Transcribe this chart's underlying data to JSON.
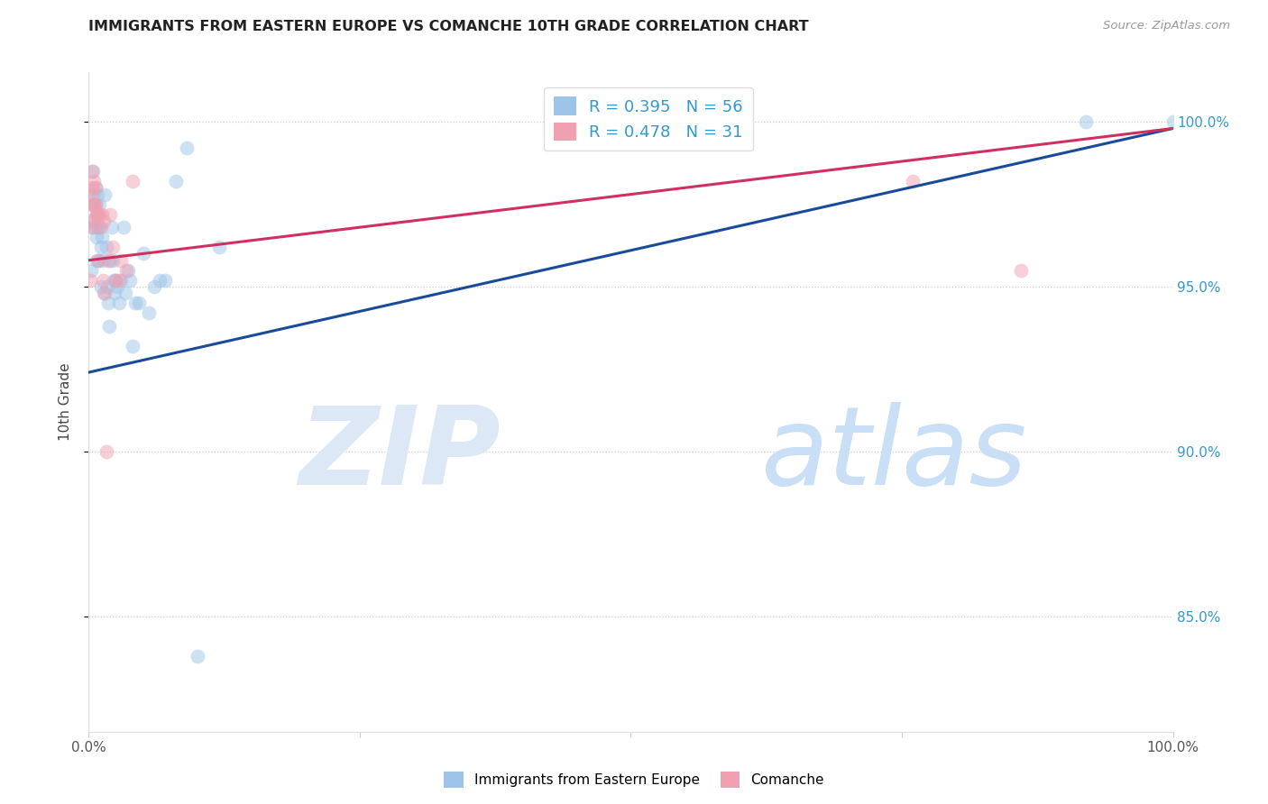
{
  "title": "IMMIGRANTS FROM EASTERN EUROPE VS COMANCHE 10TH GRADE CORRELATION CHART",
  "source": "Source: ZipAtlas.com",
  "ylabel": "10th Grade",
  "ylabel_right_labels": [
    "100.0%",
    "95.0%",
    "90.0%",
    "85.0%"
  ],
  "ylabel_right_values": [
    1.0,
    0.95,
    0.9,
    0.85
  ],
  "legend_blue_label": "R = 0.395   N = 56",
  "legend_pink_label": "R = 0.478   N = 31",
  "legend_bottom_blue": "Immigrants from Eastern Europe",
  "legend_bottom_pink": "Comanche",
  "blue_color": "#9ec4e8",
  "pink_color": "#f0a0b0",
  "blue_line_color": "#1a4a9a",
  "pink_line_color": "#d03060",
  "background_color": "#ffffff",
  "watermark_color": "#dce8f5",
  "xlim": [
    0.0,
    1.0
  ],
  "ylim": [
    0.815,
    1.015
  ],
  "blue_line_x": [
    0.0,
    1.0
  ],
  "blue_line_y": [
    0.924,
    0.998
  ],
  "pink_line_x": [
    0.0,
    1.0
  ],
  "pink_line_y": [
    0.958,
    0.998
  ],
  "blue_points_x": [
    0.002,
    0.003,
    0.003,
    0.004,
    0.004,
    0.005,
    0.005,
    0.006,
    0.006,
    0.006,
    0.007,
    0.007,
    0.007,
    0.008,
    0.008,
    0.009,
    0.009,
    0.01,
    0.01,
    0.011,
    0.011,
    0.012,
    0.013,
    0.014,
    0.015,
    0.016,
    0.017,
    0.018,
    0.019,
    0.02,
    0.021,
    0.022,
    0.023,
    0.024,
    0.025,
    0.026,
    0.028,
    0.03,
    0.032,
    0.034,
    0.036,
    0.038,
    0.04,
    0.043,
    0.046,
    0.05,
    0.055,
    0.06,
    0.065,
    0.07,
    0.08,
    0.09,
    0.1,
    0.12,
    0.92,
    1.0
  ],
  "blue_points_y": [
    0.955,
    0.975,
    0.968,
    0.985,
    0.978,
    0.975,
    0.97,
    0.98,
    0.975,
    0.968,
    0.972,
    0.965,
    0.958,
    0.978,
    0.972,
    0.968,
    0.958,
    0.975,
    0.968,
    0.962,
    0.95,
    0.965,
    0.958,
    0.948,
    0.978,
    0.962,
    0.95,
    0.945,
    0.938,
    0.958,
    0.968,
    0.958,
    0.952,
    0.948,
    0.952,
    0.95,
    0.945,
    0.952,
    0.968,
    0.948,
    0.955,
    0.952,
    0.932,
    0.945,
    0.945,
    0.96,
    0.942,
    0.95,
    0.952,
    0.952,
    0.982,
    0.992,
    0.838,
    0.962,
    1.0,
    1.0
  ],
  "pink_points_x": [
    0.001,
    0.002,
    0.002,
    0.003,
    0.003,
    0.004,
    0.004,
    0.005,
    0.005,
    0.006,
    0.006,
    0.007,
    0.008,
    0.009,
    0.01,
    0.011,
    0.012,
    0.013,
    0.014,
    0.015,
    0.016,
    0.018,
    0.02,
    0.022,
    0.025,
    0.028,
    0.03,
    0.035,
    0.04,
    0.76,
    0.86
  ],
  "pink_points_y": [
    0.952,
    0.978,
    0.97,
    0.985,
    0.98,
    0.975,
    0.968,
    0.982,
    0.975,
    0.98,
    0.975,
    0.972,
    0.972,
    0.958,
    0.972,
    0.968,
    0.972,
    0.952,
    0.97,
    0.948,
    0.9,
    0.958,
    0.972,
    0.962,
    0.952,
    0.952,
    0.958,
    0.955,
    0.982,
    0.982,
    0.955
  ],
  "marker_size": 130,
  "marker_alpha": 0.5
}
